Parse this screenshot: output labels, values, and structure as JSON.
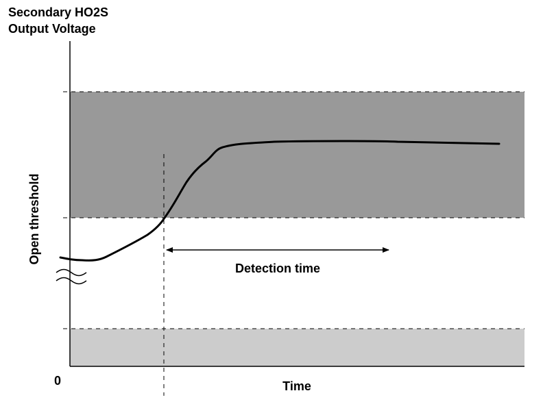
{
  "title": {
    "line1": "Secondary HO2S",
    "line2": "Output Voltage"
  },
  "y_axis_label": "Open threshold",
  "x_axis_label": "Time",
  "origin_label": "0",
  "annotation": "Detection time",
  "colors": {
    "upper_band": "#999999",
    "lower_band": "#cccccc",
    "line": "#000000"
  }
}
